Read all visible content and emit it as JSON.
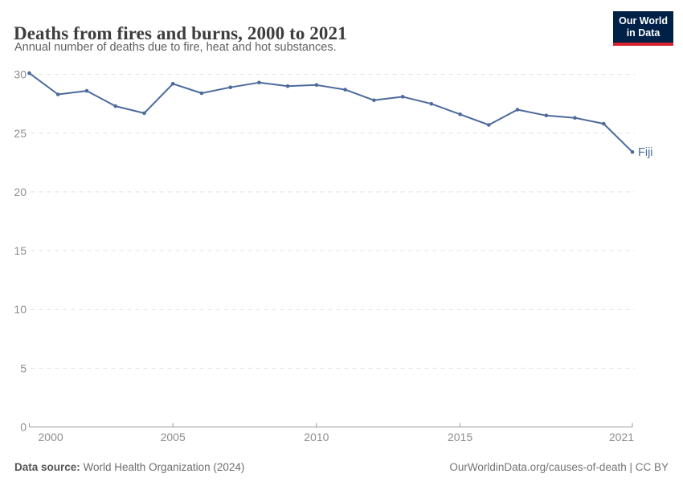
{
  "header": {
    "title": "Deaths from fires and burns, 2000 to 2021",
    "subtitle": "Annual number of deaths due to fire, heat and hot substances.",
    "logo": {
      "line1": "Our World",
      "line2": "in Data"
    }
  },
  "chart_data": {
    "type": "line",
    "title": "Deaths from fires and burns, 2000 to 2021",
    "x": [
      2000,
      2001,
      2002,
      2003,
      2004,
      2005,
      2006,
      2007,
      2008,
      2009,
      2010,
      2011,
      2012,
      2013,
      2014,
      2015,
      2016,
      2017,
      2018,
      2019,
      2020,
      2021
    ],
    "series": [
      {
        "name": "Fiji",
        "color": "#4C6A9C",
        "values": [
          30.1,
          28.3,
          28.6,
          27.3,
          26.7,
          29.2,
          28.4,
          28.9,
          29.3,
          29.0,
          29.1,
          28.7,
          27.8,
          28.1,
          27.5,
          26.6,
          25.7,
          27.0,
          26.5,
          26.3,
          25.8,
          23.4
        ]
      }
    ],
    "xlim": [
      2000,
      2021
    ],
    "ylim": [
      0,
      30
    ],
    "x_ticks": [
      2000,
      2005,
      2010,
      2015,
      2021
    ],
    "y_ticks": [
      0,
      5,
      10,
      15,
      20,
      25,
      30
    ],
    "grid": "horizontal-dashed",
    "legend_position": "end-of-line-label",
    "end_label": "Fiji"
  },
  "colors": {
    "series": "#4C6A9C",
    "grid": "#e0e0e0",
    "axis": "#9a9a9a",
    "tick_label": "#8e8e8e",
    "logo_bg": "#002147",
    "logo_stripe": "#d8232f"
  },
  "footer": {
    "source_label": "Data source:",
    "source_value": " World Health Organization (2024)",
    "link": "OurWorldinData.org/causes-of-death",
    "separator": " | ",
    "license": "CC BY"
  }
}
